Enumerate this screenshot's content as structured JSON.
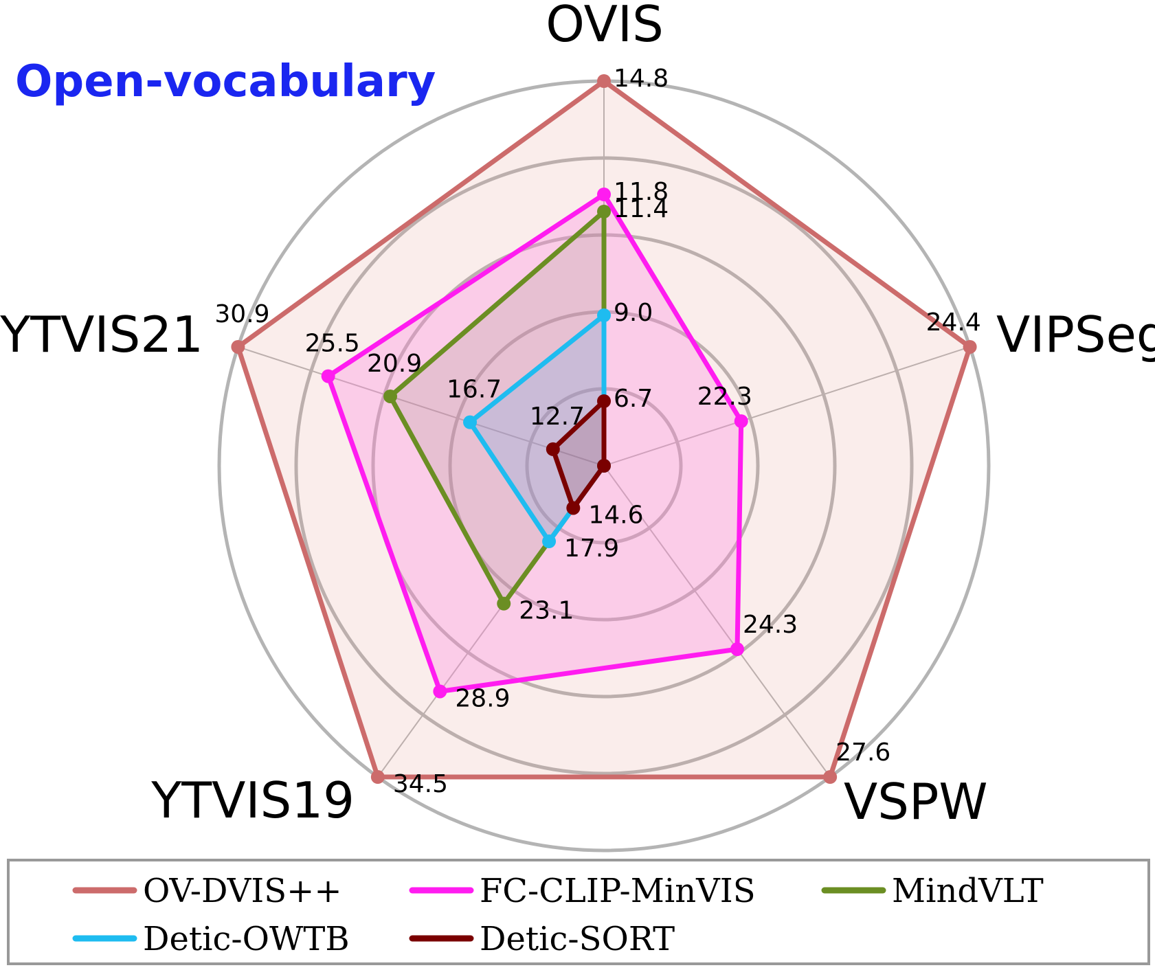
{
  "chart_data": {
    "type": "radar",
    "title": "Open-vocabulary",
    "axes": [
      "OVIS",
      "VIPSeg",
      "VSPW",
      "YTVIS19",
      "YTVIS21"
    ],
    "series": [
      {
        "name": "OV-DVIS++",
        "values": [
          14.8,
          24.4,
          27.6,
          34.5,
          30.9
        ],
        "labels": [
          "14.8",
          "24.4",
          "27.6",
          "34.5",
          "30.9"
        ],
        "color": "#cc6b6b",
        "fill": "rgba(225,155,145,0.18)"
      },
      {
        "name": "FC-CLIP-MinVIS",
        "values": [
          11.8,
          22.3,
          24.3,
          28.9,
          25.5
        ],
        "labels": [
          "11.8",
          "22.3",
          "24.3",
          "28.9",
          "25.5"
        ],
        "color": "#ff1cf0",
        "fill": "rgba(255,130,225,0.30)"
      },
      {
        "name": "MindVLT",
        "values": [
          11.4,
          null,
          null,
          23.1,
          20.9
        ],
        "labels": [
          "11.4",
          "",
          "",
          "23.1",
          "20.9"
        ],
        "color": "#6b8e23",
        "fill": "rgba(120,130,90,0.15)"
      },
      {
        "name": "Detic-OWTB",
        "values": [
          9.0,
          null,
          null,
          17.9,
          16.7
        ],
        "labels": [
          "9.0",
          "",
          "",
          "17.9",
          "16.7"
        ],
        "color": "#1ebcf0",
        "fill": "rgba(100,170,230,0.22)"
      },
      {
        "name": "Detic-SORT",
        "values": [
          6.7,
          null,
          null,
          14.6,
          12.7
        ],
        "labels": [
          "6.7",
          "",
          "",
          "14.6",
          "12.7"
        ],
        "color": "#7a0000",
        "fill": "rgba(120,30,40,0.15)"
      }
    ],
    "radial_levels": 5,
    "grid": true,
    "legend_position": "bottom"
  }
}
